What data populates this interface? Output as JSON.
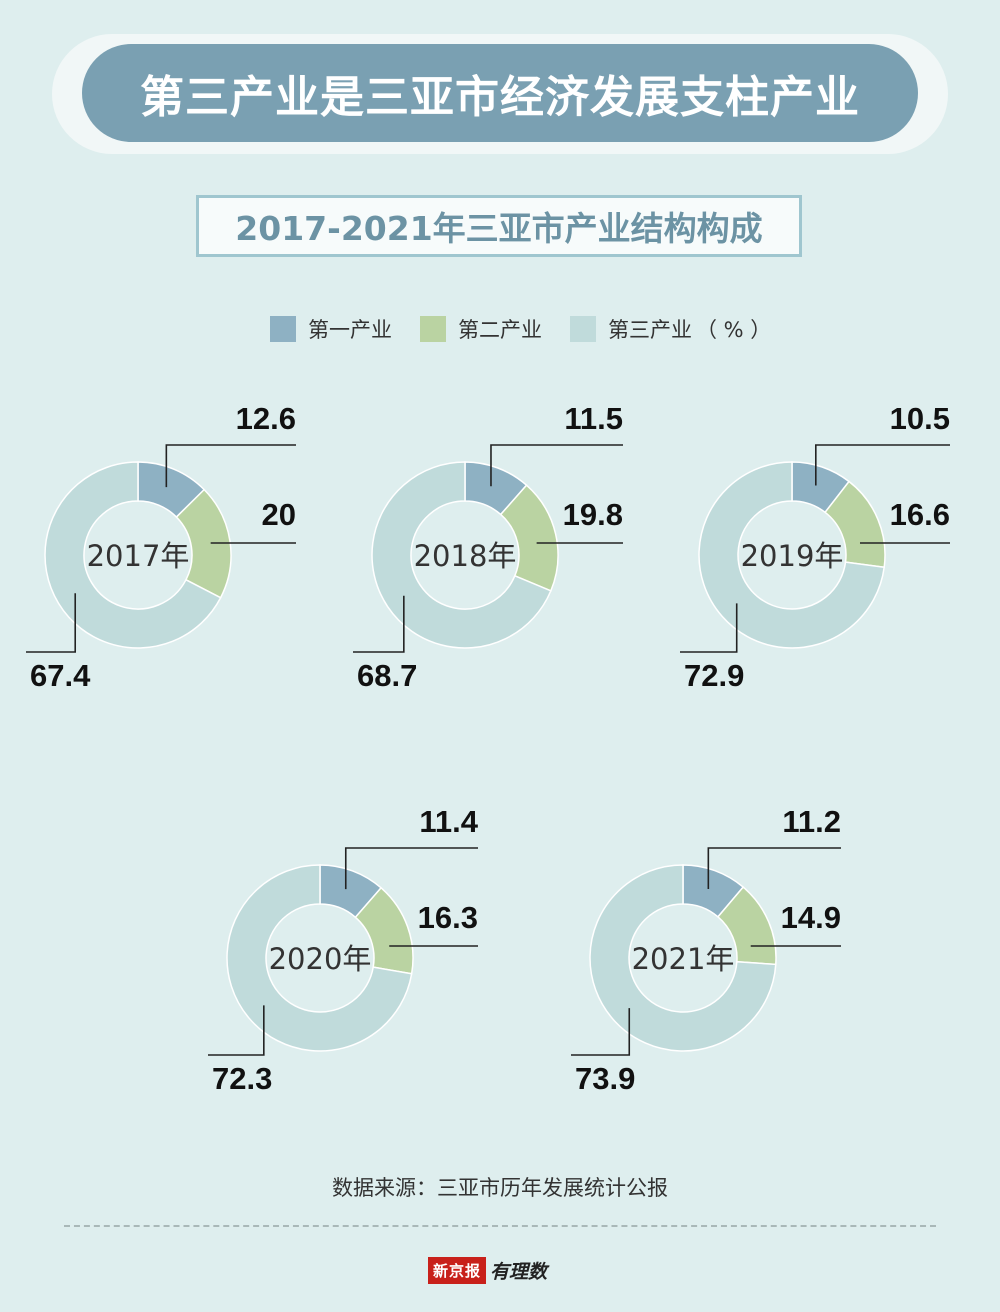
{
  "banner": {
    "title": "第三产业是三亚市经济发展支柱产业"
  },
  "subtitle": "2017-2021年三亚市产业结构构成",
  "legend": {
    "items": [
      {
        "label": "第一产业",
        "color": "#8eb1c3"
      },
      {
        "label": "第二产业",
        "color": "#bad3a2"
      },
      {
        "label": "第三产业",
        "color": "#c0dbdb"
      }
    ],
    "unit": "（ % ）"
  },
  "chart_data": {
    "type": "donut",
    "series_names": [
      "第一产业",
      "第二产业",
      "第三产业"
    ],
    "charts": [
      {
        "year_label": "2017年",
        "values": [
          12.6,
          20,
          67.4
        ],
        "value_labels": [
          "12.6",
          "20",
          "67.4"
        ]
      },
      {
        "year_label": "2018年",
        "values": [
          11.5,
          19.8,
          68.7
        ],
        "value_labels": [
          "11.5",
          "19.8",
          "68.7"
        ]
      },
      {
        "year_label": "2019年",
        "values": [
          10.5,
          16.6,
          72.9
        ],
        "value_labels": [
          "10.5",
          "16.6",
          "72.9"
        ]
      },
      {
        "year_label": "2020年",
        "values": [
          11.4,
          16.3,
          72.3
        ],
        "value_labels": [
          "11.4",
          "16.3",
          "72.3"
        ]
      },
      {
        "year_label": "2021年",
        "values": [
          11.2,
          14.9,
          73.9
        ],
        "value_labels": [
          "11.2",
          "14.9",
          "73.9"
        ]
      }
    ],
    "unit": "%"
  },
  "source": "数据来源：三亚市历年发展统计公报",
  "logo": {
    "brand": "新京报",
    "column": "有理数"
  }
}
